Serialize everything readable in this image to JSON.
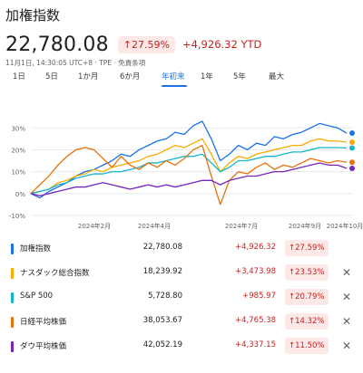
{
  "header": {
    "title": "加権指数",
    "price": "22,780.08",
    "change_badge": "↑27.59%",
    "change_ytd": "+4,926.32 YTD",
    "meta": "11月1日, 14:30:05 UTC+8 · TPE · 免責条項"
  },
  "tabs": [
    {
      "label": "1日"
    },
    {
      "label": "5日"
    },
    {
      "label": "1か月"
    },
    {
      "label": "6か月"
    },
    {
      "label": "年初来"
    },
    {
      "label": "1年"
    },
    {
      "label": "5年"
    },
    {
      "label": "最大"
    }
  ],
  "active_tab": "年初来",
  "rows": [
    {
      "name": "加権指数",
      "value": "22,780.08",
      "change": "+4,926.32",
      "pct": "↑27.59%",
      "color": "#1a73e8",
      "removable": false
    },
    {
      "name": "ナスダック総合指数",
      "value": "18,239.92",
      "change": "+3,473.98",
      "pct": "↑23.53%",
      "color": "#f9ab00",
      "removable": true
    },
    {
      "name": "S&P 500",
      "value": "5,728.80",
      "change": "+985.97",
      "pct": "↑20.79%",
      "color": "#12b5cb",
      "removable": true
    },
    {
      "name": "日経平均株価",
      "value": "38,053.67",
      "change": "+4,765.38",
      "pct": "↑14.32%",
      "color": "#e8710a",
      "removable": true
    },
    {
      "name": "ダウ平均株価",
      "value": "42,052.19",
      "change": "+4,337.15",
      "pct": "↑11.50%",
      "color": "#7627bb",
      "removable": true
    }
  ],
  "close_glyph": "✕",
  "chart_data": {
    "type": "line",
    "yticks": [
      "30%",
      "20%",
      "10%",
      "0%",
      "-10%"
    ],
    "ylim": [
      -10,
      33
    ],
    "xticks": [
      "2024年2月",
      "2024年4月",
      "2024年7月",
      "2024年9月",
      "2024年10月"
    ],
    "xtick_positions": [
      0.0,
      0.0,
      0.0,
      0.0,
      0.0
    ],
    "series": [
      {
        "name": "加権指数",
        "color": "#1a73e8",
        "values": [
          0,
          -2,
          1,
          3,
          5,
          8,
          10,
          11,
          13,
          15,
          18,
          17,
          20,
          22,
          24,
          25,
          28,
          27,
          31,
          33,
          25,
          15,
          18,
          22,
          20,
          23,
          22,
          26,
          25,
          27,
          28,
          30,
          32,
          31,
          30,
          27.6
        ]
      },
      {
        "name": "ナスダック総合指数",
        "color": "#f9ab00",
        "values": [
          0,
          1,
          2,
          5,
          6,
          8,
          9,
          11,
          10,
          12,
          13,
          14,
          15,
          17,
          18,
          20,
          22,
          21,
          23,
          25,
          18,
          10,
          14,
          17,
          16,
          18,
          19,
          20,
          21,
          22,
          22,
          24,
          25,
          24,
          24,
          23.5
        ]
      },
      {
        "name": "S&P 500",
        "color": "#12b5cb",
        "values": [
          0,
          1,
          2,
          4,
          5,
          7,
          8,
          9,
          9,
          10,
          10,
          11,
          12,
          14,
          14,
          15,
          16,
          17,
          17,
          18,
          14,
          10,
          12,
          15,
          15,
          16,
          17,
          17,
          18,
          19,
          19,
          20,
          21,
          21,
          21,
          20.8
        ]
      },
      {
        "name": "日経平均株価",
        "color": "#e8710a",
        "values": [
          0,
          4,
          8,
          13,
          17,
          20,
          21,
          20,
          16,
          12,
          17,
          13,
          11,
          14,
          12,
          15,
          13,
          16,
          20,
          22,
          8,
          -5,
          6,
          10,
          9,
          12,
          14,
          11,
          13,
          12,
          14,
          16,
          15,
          14,
          15,
          14.3
        ]
      },
      {
        "name": "ダウ平均株価",
        "color": "#7627bb",
        "values": [
          0,
          -1,
          0,
          1,
          2,
          3,
          3,
          4,
          5,
          4,
          3,
          2,
          3,
          4,
          3,
          4,
          3,
          4,
          5,
          6,
          6,
          4,
          6,
          7,
          8,
          8,
          9,
          10,
          10,
          11,
          12,
          13,
          14,
          13,
          13,
          11.5
        ]
      }
    ]
  }
}
